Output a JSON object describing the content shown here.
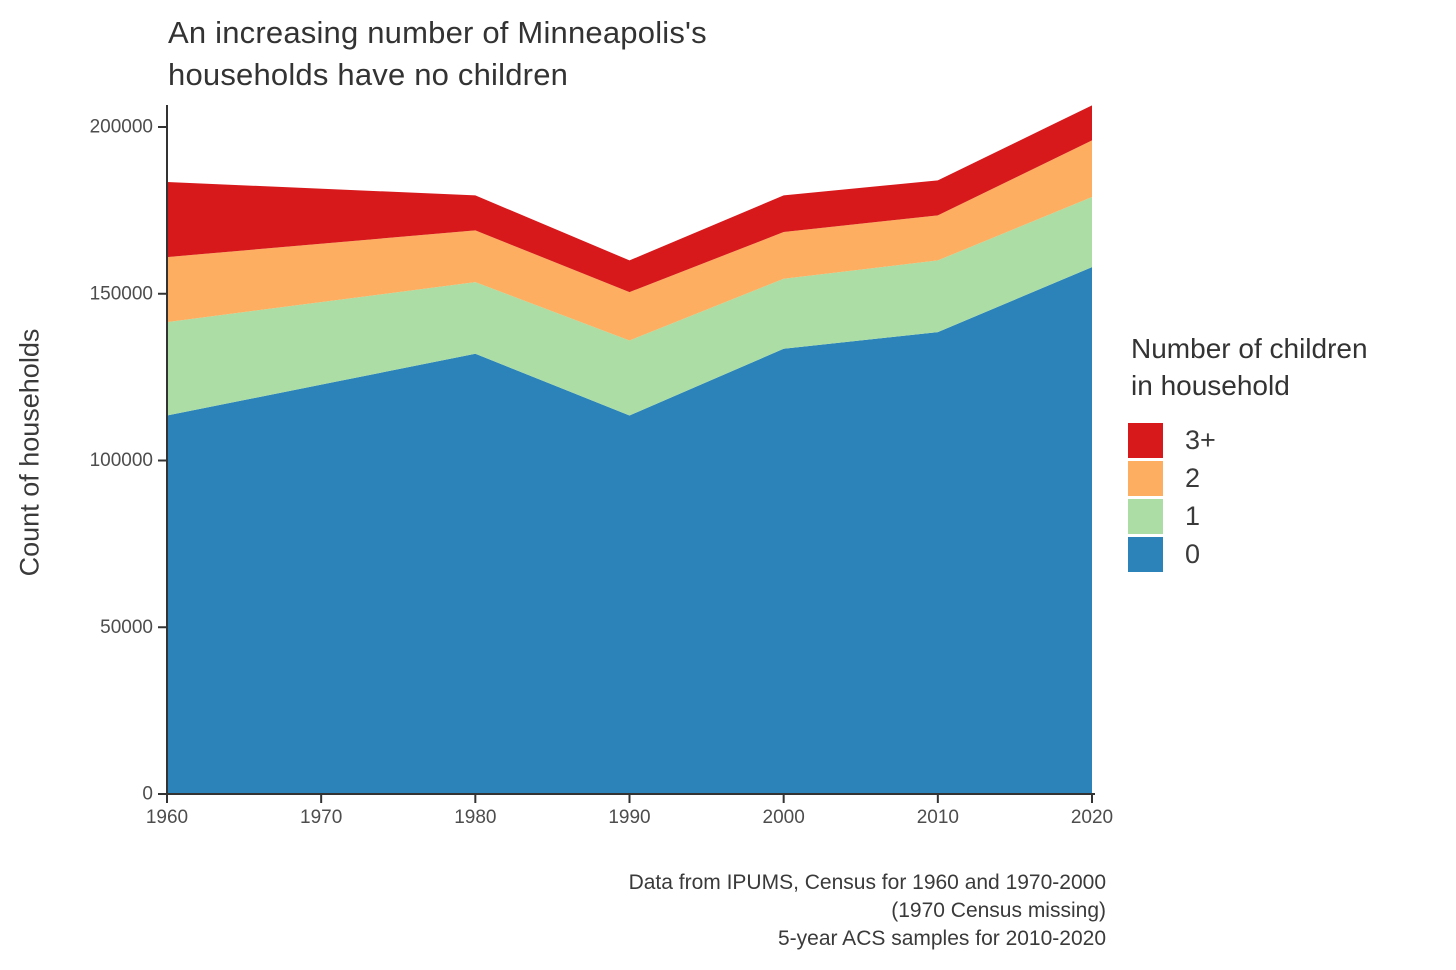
{
  "title": {
    "line1": "An increasing number of Minneapolis's",
    "line2": "households have no children"
  },
  "ylabel": "Count of households",
  "legend": {
    "title_line1": "Number of children",
    "title_line2": "in household",
    "items": [
      {
        "label": "3+",
        "color": "#d7191c"
      },
      {
        "label": "2",
        "color": "#fdae61"
      },
      {
        "label": "1",
        "color": "#abdda4"
      },
      {
        "label": "0",
        "color": "#2b83ba"
      }
    ]
  },
  "caption": {
    "line1": "Data from IPUMS, Census for 1960 and 1970-2000",
    "line2": "(1970 Census missing)",
    "line3": "5-year ACS samples for 2010-2020"
  },
  "colors": {
    "axis_line": "#333333",
    "tick_text": "#4d4d4d",
    "background": "#ffffff"
  },
  "chart_data": {
    "type": "area",
    "stacked": true,
    "title": "An increasing number of Minneapolis's households have no children",
    "xlabel": "",
    "ylabel": "Count of households",
    "x": [
      1960,
      1980,
      1990,
      2000,
      2010,
      2020
    ],
    "missing_x": [
      1970
    ],
    "series": [
      {
        "name": "0",
        "color": "#2b83ba",
        "values": [
          113500,
          132000,
          113500,
          133500,
          138500,
          158000
        ]
      },
      {
        "name": "1",
        "color": "#abdda4",
        "values": [
          28000,
          21500,
          22500,
          21000,
          21500,
          21000
        ]
      },
      {
        "name": "2",
        "color": "#fdae61",
        "values": [
          19500,
          15500,
          14500,
          14000,
          13500,
          17000
        ]
      },
      {
        "name": "3+",
        "color": "#d7191c",
        "values": [
          22500,
          10500,
          9500,
          11000,
          10500,
          10500
        ]
      }
    ],
    "stack_order_bottom_to_top": [
      "0",
      "1",
      "2",
      "3+"
    ],
    "totals": [
      183500,
      179500,
      160000,
      179500,
      184000,
      206500
    ],
    "xticks": [
      1960,
      1970,
      1980,
      1990,
      2000,
      2010,
      2020
    ],
    "yticks": [
      0,
      50000,
      100000,
      150000,
      200000
    ],
    "xlim": [
      1960,
      2020
    ],
    "ylim": [
      0,
      206500
    ],
    "grid": false,
    "legend_position": "right",
    "legend_title": "Number of children in household"
  }
}
